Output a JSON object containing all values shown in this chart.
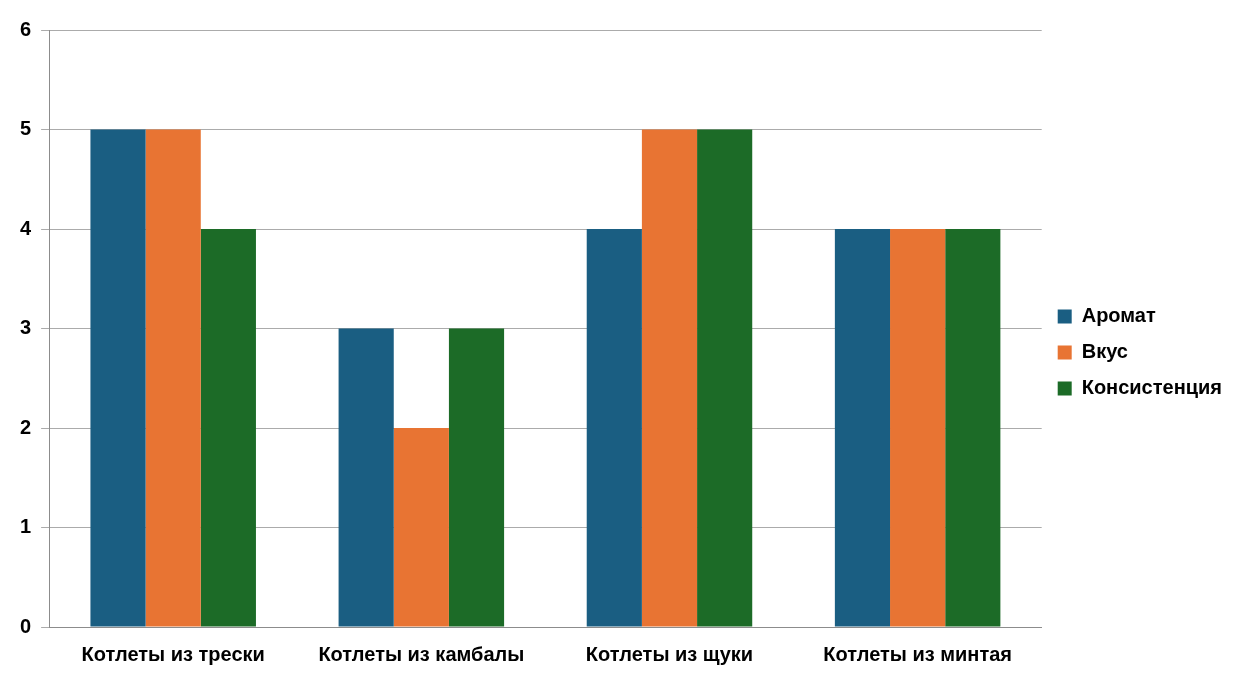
{
  "chart_data": {
    "type": "bar",
    "categories": [
      "Котлеты из трески",
      "Котлеты из камбалы",
      "Котлеты из щуки",
      "Котлеты из минтая"
    ],
    "series": [
      {
        "name": "Аромат",
        "color": "#1a5e82",
        "values": [
          5,
          3,
          4,
          4
        ]
      },
      {
        "name": "Вкус",
        "color": "#e87433",
        "values": [
          5,
          2,
          5,
          4
        ]
      },
      {
        "name": "Консистенция",
        "color": "#1c6b27",
        "values": [
          4,
          3,
          5,
          4
        ]
      }
    ],
    "ylim": [
      0,
      6
    ],
    "yticks": [
      0,
      1,
      2,
      3,
      4,
      5,
      6
    ],
    "grid": "y",
    "legend": "right"
  }
}
